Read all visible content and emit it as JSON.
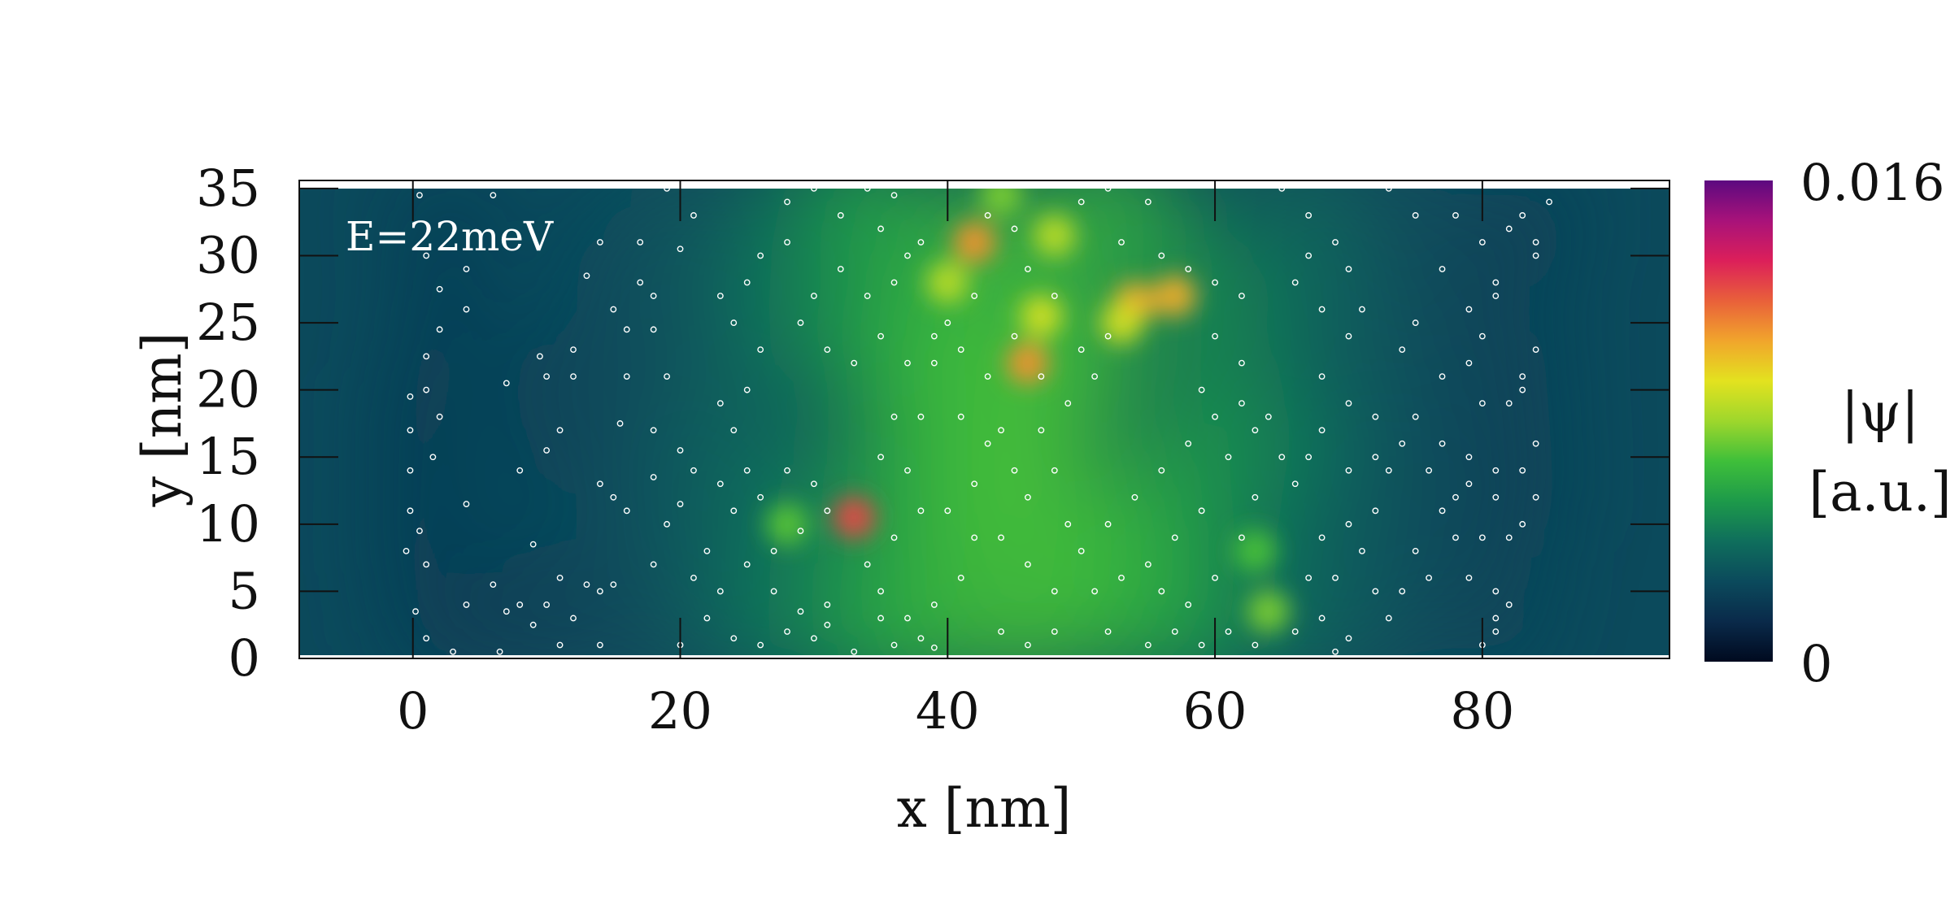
{
  "chart_data": {
    "type": "heatmap",
    "title": "",
    "annotation": "E=22meV",
    "xlabel": "x [nm]",
    "ylabel": "y [nm]",
    "xlim": [
      -8.5,
      94
    ],
    "ylim": [
      0,
      35.6
    ],
    "xticks": [
      "0",
      "20",
      "40",
      "60",
      "80"
    ],
    "yticks": [
      "0",
      "5",
      "10",
      "15",
      "20",
      "25",
      "30",
      "35"
    ],
    "colorbar": {
      "label_line1": "|ψ|",
      "label_line2": "[a.u.]",
      "min_label": "0",
      "max_label": "0.016",
      "range": [
        0,
        0.016
      ],
      "colors": [
        "#000a1f",
        "#0a2a4a",
        "#0b4a5c",
        "#0f6e5c",
        "#1d9a4a",
        "#3fbf3a",
        "#9ed72c",
        "#e3e21f",
        "#f1a52c",
        "#e9603a",
        "#dc1f5a",
        "#a8127a",
        "#5c0a80"
      ]
    },
    "hotspots": [
      {
        "x": 33,
        "y": 10.5,
        "value": 0.0125
      },
      {
        "x": 46,
        "y": 22,
        "value": 0.011
      },
      {
        "x": 42,
        "y": 31,
        "value": 0.011
      },
      {
        "x": 54,
        "y": 26.5,
        "value": 0.0105
      },
      {
        "x": 57,
        "y": 27,
        "value": 0.0105
      },
      {
        "x": 47,
        "y": 25.5,
        "value": 0.009
      },
      {
        "x": 53,
        "y": 25,
        "value": 0.009
      },
      {
        "x": 40,
        "y": 28,
        "value": 0.0085
      },
      {
        "x": 48,
        "y": 31.5,
        "value": 0.0085
      },
      {
        "x": 44,
        "y": 34.5,
        "value": 0.0075
      },
      {
        "x": 64,
        "y": 3.5,
        "value": 0.0075
      },
      {
        "x": 28,
        "y": 10,
        "value": 0.007
      },
      {
        "x": 63,
        "y": 8,
        "value": 0.0068
      }
    ],
    "impurities": [
      [
        0.5,
        34.5
      ],
      [
        6,
        34.5
      ],
      [
        1,
        30
      ],
      [
        2,
        27.5
      ],
      [
        2,
        24.5
      ],
      [
        4,
        29
      ],
      [
        4,
        26
      ],
      [
        1,
        22.5
      ],
      [
        -0.2,
        19.5
      ],
      [
        1,
        20
      ],
      [
        2,
        18
      ],
      [
        -0.2,
        17
      ],
      [
        1.5,
        15
      ],
      [
        -0.2,
        14
      ],
      [
        4,
        11.5
      ],
      [
        -0.2,
        11
      ],
      [
        0.5,
        9.5
      ],
      [
        1,
        7
      ],
      [
        -0.5,
        8
      ],
      [
        0.2,
        3.5
      ],
      [
        1,
        1.5
      ],
      [
        3,
        0.5
      ],
      [
        6.5,
        0.5
      ],
      [
        4,
        4
      ],
      [
        6,
        5.5
      ],
      [
        7,
        3.5
      ],
      [
        8,
        4
      ],
      [
        9,
        2.5
      ],
      [
        10,
        4
      ],
      [
        11,
        1
      ],
      [
        12,
        3
      ],
      [
        13,
        5.5
      ],
      [
        14,
        5
      ],
      [
        15,
        5.5
      ],
      [
        11,
        6
      ],
      [
        9,
        8.5
      ],
      [
        8,
        14
      ],
      [
        10,
        15.5
      ],
      [
        11,
        17
      ],
      [
        7,
        20.5
      ],
      [
        9.5,
        22.5
      ],
      [
        10,
        21
      ],
      [
        12,
        23
      ],
      [
        12,
        21
      ],
      [
        13,
        28.5
      ],
      [
        14,
        31
      ],
      [
        15,
        26
      ],
      [
        16,
        24.5
      ],
      [
        17,
        28
      ],
      [
        18,
        27
      ],
      [
        17,
        31
      ],
      [
        19,
        35
      ],
      [
        21,
        33
      ],
      [
        20,
        30.5
      ],
      [
        18,
        24.5
      ],
      [
        19,
        21
      ],
      [
        16,
        21
      ],
      [
        15.5,
        17.5
      ],
      [
        18,
        17
      ],
      [
        14,
        13
      ],
      [
        15,
        12
      ],
      [
        16,
        11
      ],
      [
        18,
        13.5
      ],
      [
        20,
        15.5
      ],
      [
        21,
        14
      ],
      [
        20,
        11.5
      ],
      [
        19,
        10
      ],
      [
        22,
        8
      ],
      [
        21,
        6
      ],
      [
        18,
        7
      ],
      [
        23,
        5
      ],
      [
        22,
        3
      ],
      [
        20,
        1
      ],
      [
        14,
        1
      ],
      [
        24,
        1.5
      ],
      [
        26,
        1
      ],
      [
        28,
        2
      ],
      [
        30,
        1.5
      ],
      [
        31,
        2.5
      ],
      [
        33,
        0.5
      ],
      [
        36,
        1
      ],
      [
        38,
        1.5
      ],
      [
        39,
        0.8
      ],
      [
        37,
        3
      ],
      [
        35,
        3
      ],
      [
        31,
        4
      ],
      [
        29,
        3.5
      ],
      [
        27,
        5
      ],
      [
        25,
        7
      ],
      [
        27,
        8
      ],
      [
        29,
        9.5
      ],
      [
        31,
        11
      ],
      [
        30,
        13
      ],
      [
        28,
        14
      ],
      [
        26,
        12
      ],
      [
        24,
        11
      ],
      [
        23,
        13
      ],
      [
        25,
        14
      ],
      [
        24,
        17
      ],
      [
        23,
        19
      ],
      [
        25,
        20
      ],
      [
        26,
        23
      ],
      [
        24,
        25
      ],
      [
        23,
        27
      ],
      [
        25,
        28
      ],
      [
        26,
        30
      ],
      [
        28,
        31
      ],
      [
        28,
        34
      ],
      [
        30,
        35
      ],
      [
        32,
        33
      ],
      [
        34,
        35
      ],
      [
        36,
        34.5
      ],
      [
        35,
        32
      ],
      [
        37,
        30
      ],
      [
        38,
        31
      ],
      [
        36,
        28
      ],
      [
        34,
        27
      ],
      [
        32,
        29
      ],
      [
        30,
        27
      ],
      [
        29,
        25
      ],
      [
        31,
        23
      ],
      [
        33,
        22
      ],
      [
        35,
        24
      ],
      [
        37,
        22
      ],
      [
        39,
        22
      ],
      [
        36,
        18
      ],
      [
        38,
        18
      ],
      [
        35,
        15
      ],
      [
        37,
        14
      ],
      [
        38,
        11
      ],
      [
        36,
        9
      ],
      [
        34,
        7
      ],
      [
        35,
        5
      ],
      [
        39,
        4
      ],
      [
        41,
        6
      ],
      [
        42,
        9
      ],
      [
        40,
        11
      ],
      [
        42,
        13
      ],
      [
        43,
        16
      ],
      [
        41,
        18
      ],
      [
        44,
        17
      ],
      [
        45,
        14
      ],
      [
        46,
        12
      ],
      [
        44,
        9
      ],
      [
        46,
        7
      ],
      [
        48,
        5
      ],
      [
        48,
        2
      ],
      [
        46,
        1
      ],
      [
        44,
        2
      ],
      [
        52,
        2
      ],
      [
        55,
        1
      ],
      [
        57,
        2
      ],
      [
        59,
        1
      ],
      [
        61,
        2
      ],
      [
        63,
        1
      ],
      [
        66,
        2
      ],
      [
        68,
        3
      ],
      [
        69,
        0.5
      ],
      [
        70,
        1.5
      ],
      [
        67,
        6
      ],
      [
        69,
        6
      ],
      [
        68,
        9
      ],
      [
        70,
        10
      ],
      [
        71,
        8
      ],
      [
        72,
        5
      ],
      [
        73,
        3
      ],
      [
        74,
        5
      ],
      [
        75,
        8
      ],
      [
        72,
        11
      ],
      [
        70,
        14
      ],
      [
        72,
        15
      ],
      [
        73,
        14
      ],
      [
        74,
        16
      ],
      [
        75,
        18
      ],
      [
        72,
        18
      ],
      [
        70,
        19
      ],
      [
        68,
        17
      ],
      [
        67,
        15
      ],
      [
        66,
        13
      ],
      [
        68,
        21
      ],
      [
        70,
        24
      ],
      [
        71,
        26
      ],
      [
        68,
        26
      ],
      [
        66,
        28
      ],
      [
        67,
        30
      ],
      [
        69,
        31
      ],
      [
        70,
        29
      ],
      [
        67,
        33
      ],
      [
        65,
        35
      ],
      [
        73,
        35
      ],
      [
        75,
        33
      ],
      [
        77,
        29
      ],
      [
        75,
        25
      ],
      [
        74,
        23
      ],
      [
        77,
        21
      ],
      [
        79,
        22
      ],
      [
        80,
        24
      ],
      [
        79,
        26
      ],
      [
        81,
        27
      ],
      [
        83,
        21
      ],
      [
        83,
        20
      ],
      [
        82,
        19
      ],
      [
        80,
        19
      ],
      [
        79,
        15
      ],
      [
        81,
        14
      ],
      [
        83,
        14
      ],
      [
        84,
        12
      ],
      [
        83,
        10
      ],
      [
        82,
        9
      ],
      [
        80,
        9
      ],
      [
        78,
        9
      ],
      [
        77,
        11
      ],
      [
        78,
        12
      ],
      [
        76,
        14
      ],
      [
        77,
        16
      ],
      [
        79,
        13
      ],
      [
        81,
        12
      ],
      [
        84,
        16
      ],
      [
        82,
        4
      ],
      [
        81,
        3
      ],
      [
        81,
        2
      ],
      [
        80,
        1
      ],
      [
        81,
        5
      ],
      [
        79,
        6
      ],
      [
        76,
        6
      ],
      [
        78,
        33
      ],
      [
        80,
        31
      ],
      [
        82,
        32
      ],
      [
        83,
        33
      ],
      [
        84,
        30
      ],
      [
        81,
        28
      ],
      [
        84,
        23
      ],
      [
        85,
        34
      ],
      [
        84,
        31
      ],
      [
        50,
        34
      ],
      [
        52,
        35
      ],
      [
        55,
        34
      ],
      [
        53,
        31
      ],
      [
        56,
        30
      ],
      [
        58,
        29
      ],
      [
        60,
        28
      ],
      [
        62,
        27
      ],
      [
        60,
        24
      ],
      [
        62,
        22
      ],
      [
        59,
        20
      ],
      [
        60,
        18
      ],
      [
        58,
        16
      ],
      [
        56,
        14
      ],
      [
        54,
        12
      ],
      [
        52,
        10
      ],
      [
        50,
        8
      ],
      [
        53,
        6
      ],
      [
        56,
        5
      ],
      [
        58,
        4
      ],
      [
        60,
        6
      ],
      [
        62,
        9
      ],
      [
        63,
        12
      ],
      [
        65,
        15
      ],
      [
        64,
        18
      ],
      [
        62,
        19
      ],
      [
        63,
        17
      ],
      [
        61,
        15
      ],
      [
        59,
        11
      ],
      [
        57,
        9
      ],
      [
        55,
        7
      ],
      [
        51,
        5
      ],
      [
        49,
        10
      ],
      [
        48,
        14
      ],
      [
        47,
        17
      ],
      [
        49,
        19
      ],
      [
        51,
        21
      ],
      [
        50,
        23
      ],
      [
        52,
        24
      ],
      [
        48,
        27
      ],
      [
        46,
        29
      ],
      [
        45,
        32
      ],
      [
        43,
        33
      ],
      [
        42,
        27
      ],
      [
        40,
        25
      ],
      [
        39,
        24
      ],
      [
        41,
        23
      ],
      [
        43,
        21
      ],
      [
        45,
        24
      ],
      [
        47,
        21
      ]
    ]
  }
}
